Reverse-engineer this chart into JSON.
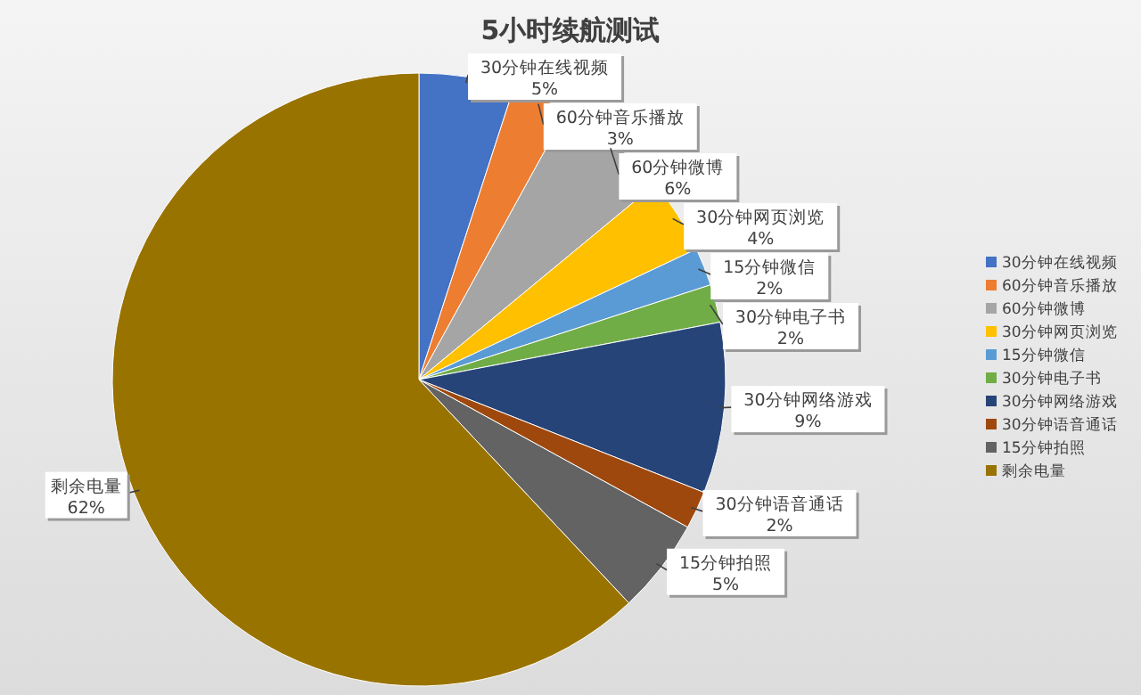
{
  "chart_data": {
    "type": "pie",
    "title": "5小时续航测试",
    "categories": [
      "30分钟在线视频",
      "60分钟音乐播放",
      "60分钟微博",
      "30分钟网页浏览",
      "15分钟微信",
      "30分钟电子书",
      "30分钟网络游戏",
      "30分钟语音通话",
      "15分钟拍照",
      "剩余电量"
    ],
    "values": [
      5,
      3,
      6,
      4,
      2,
      2,
      9,
      2,
      5,
      62
    ],
    "colors": [
      "#4472c4",
      "#ed7d31",
      "#a5a5a5",
      "#ffc000",
      "#5b9bd5",
      "#70ad47",
      "#264478",
      "#9e480e",
      "#636363",
      "#997300"
    ],
    "value_labels": [
      "5%",
      "3%",
      "6%",
      "4%",
      "2%",
      "2%",
      "9%",
      "2%",
      "5%",
      "62%"
    ],
    "legend": "right"
  }
}
